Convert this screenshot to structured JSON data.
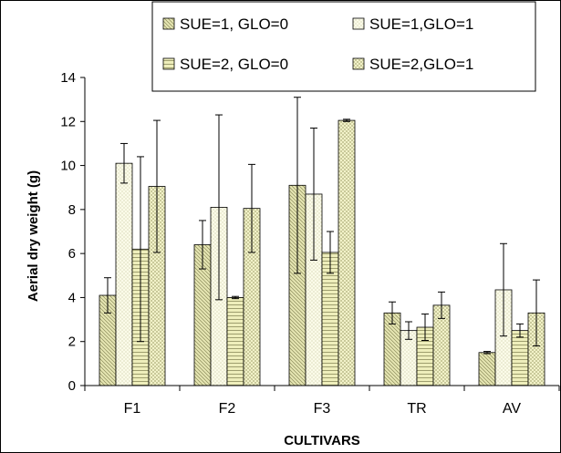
{
  "chart_data": {
    "type": "bar",
    "categories": [
      "F1",
      "F2",
      "F3",
      "TR",
      "AV"
    ],
    "xlabel": "CULTIVARS",
    "ylabel": "Aerial dry weight  (g)",
    "ylim": [
      0,
      14
    ],
    "yticks": [
      0,
      2,
      4,
      6,
      8,
      10,
      12,
      14
    ],
    "grid": false,
    "legend_position": "top",
    "series": [
      {
        "name": "SUE=1, GLO=0",
        "values": [
          4.1,
          6.4,
          9.1,
          3.3,
          1.5
        ],
        "error": [
          0.8,
          1.1,
          4.0,
          0.5,
          0.05
        ],
        "fill": "#e6e6b3",
        "pattern": "diag-down"
      },
      {
        "name": "SUE=1,GLO=1",
        "values": [
          10.1,
          8.1,
          8.7,
          2.5,
          4.35
        ],
        "error": [
          0.9,
          4.2,
          3.0,
          0.4,
          2.1
        ],
        "fill": "#fbfbe9",
        "pattern": "dots"
      },
      {
        "name": "SUE=2, GLO=0",
        "values": [
          6.2,
          4.0,
          6.05,
          2.65,
          2.5
        ],
        "error": [
          4.2,
          0.05,
          0.95,
          0.6,
          0.3
        ],
        "fill": "#eeeebb",
        "pattern": "horizontal"
      },
      {
        "name": "SUE=2,GLO=1",
        "values": [
          9.05,
          8.05,
          12.05,
          3.65,
          3.3
        ],
        "error": [
          3.0,
          2.0,
          0.05,
          0.6,
          1.5
        ],
        "fill": "#f2f2c9",
        "pattern": "check"
      }
    ]
  }
}
